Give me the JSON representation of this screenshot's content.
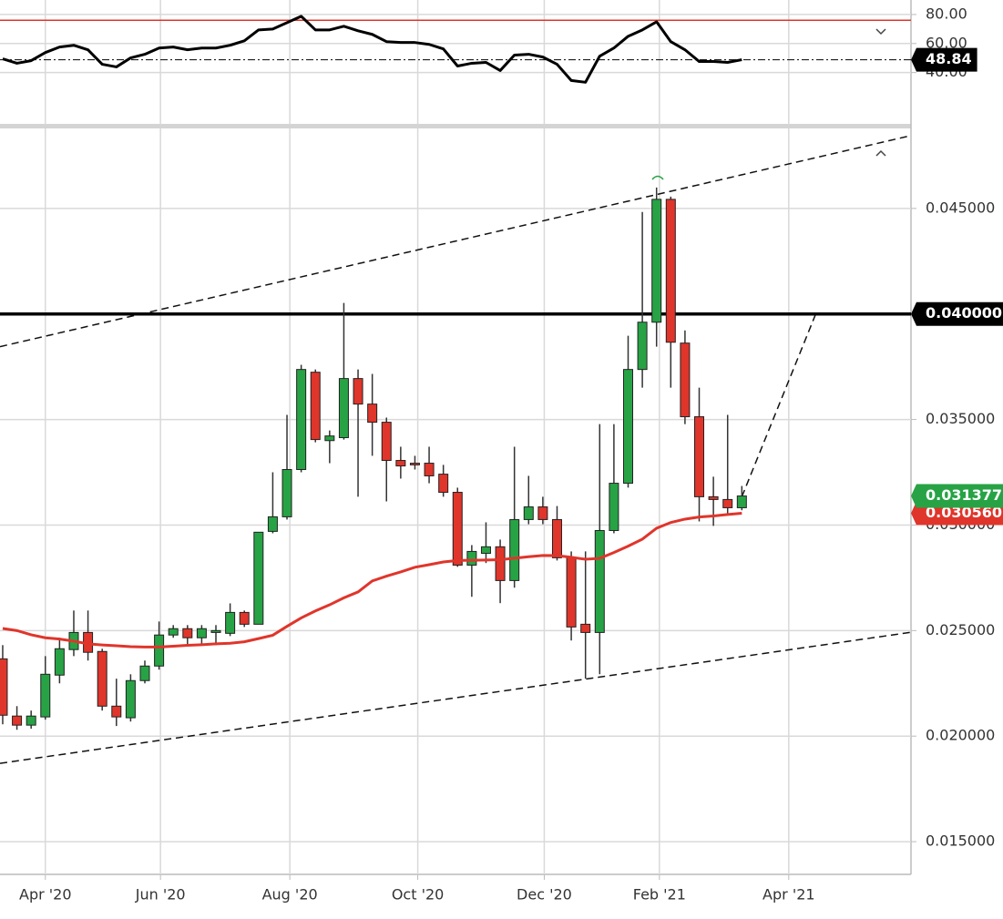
{
  "chart_data": [
    {
      "type": "candlestick",
      "x": [
        0,
        1,
        2,
        3,
        4,
        5,
        6,
        7,
        8,
        9,
        10,
        11,
        12,
        13,
        14,
        15,
        16,
        17,
        18,
        19,
        20,
        21,
        22,
        23,
        24,
        25,
        26,
        27,
        28,
        29,
        30,
        31,
        32,
        33,
        34,
        35,
        36,
        37,
        38,
        39,
        40,
        41,
        42,
        43,
        44,
        45,
        46,
        47,
        48,
        49,
        50,
        51,
        52
      ],
      "open": [
        0.02366,
        0.02095,
        0.02052,
        0.02091,
        0.02289,
        0.0241,
        0.02491,
        0.02401,
        0.02142,
        0.02087,
        0.02263,
        0.02332,
        0.02479,
        0.02509,
        0.02466,
        0.02491,
        0.02487,
        0.02586,
        0.0253,
        0.0297,
        0.03039,
        0.03263,
        0.03724,
        0.034,
        0.03414,
        0.03694,
        0.03573,
        0.03487,
        0.03306,
        0.03293,
        0.03293,
        0.03241,
        0.03155,
        0.0281,
        0.02866,
        0.02897,
        0.02737,
        0.03026,
        0.03086,
        0.03026,
        0.02845,
        0.0253,
        0.02491,
        0.02974,
        0.03198,
        0.03737,
        0.03961,
        0.04543,
        0.03862,
        0.03513,
        0.03134,
        0.03121,
        0.03082
      ],
      "high": [
        0.02431,
        0.02142,
        0.02121,
        0.02379,
        0.02466,
        0.02595,
        0.02595,
        0.02414,
        0.02272,
        0.02293,
        0.02358,
        0.02543,
        0.02526,
        0.02526,
        0.02526,
        0.02526,
        0.02629,
        0.02595,
        0.02966,
        0.0325,
        0.03522,
        0.03759,
        0.03737,
        0.03448,
        0.04052,
        0.03737,
        0.03716,
        0.03509,
        0.03371,
        0.03328,
        0.03371,
        0.03285,
        0.03177,
        0.02905,
        0.03013,
        0.02931,
        0.03371,
        0.03233,
        0.03134,
        0.0309,
        0.02875,
        0.02875,
        0.03478,
        0.03478,
        0.03897,
        0.04483,
        0.04599,
        0.04556,
        0.03922,
        0.03651,
        0.03229,
        0.03522,
        0.03185
      ],
      "low": [
        0.02056,
        0.0203,
        0.02035,
        0.02078,
        0.0225,
        0.02379,
        0.02358,
        0.02121,
        0.02048,
        0.02069,
        0.0225,
        0.02315,
        0.02466,
        0.02431,
        0.02431,
        0.02431,
        0.02474,
        0.02517,
        0.0253,
        0.02961,
        0.03026,
        0.0325,
        0.03392,
        0.03293,
        0.03405,
        0.03134,
        0.03328,
        0.03112,
        0.0322,
        0.03263,
        0.03198,
        0.03134,
        0.02802,
        0.0266,
        0.0282,
        0.0263,
        0.02703,
        0.03004,
        0.03004,
        0.02832,
        0.02453,
        0.02272,
        0.02293,
        0.02961,
        0.03177,
        0.03651,
        0.03845,
        0.03651,
        0.03478,
        0.03017,
        0.02996,
        0.03047,
        0.0307
      ],
      "close": [
        0.02099,
        0.02052,
        0.02095,
        0.02293,
        0.02414,
        0.02491,
        0.02397,
        0.02142,
        0.02091,
        0.02263,
        0.02332,
        0.02479,
        0.02509,
        0.02466,
        0.02509,
        0.025,
        0.02586,
        0.0253,
        0.02966,
        0.03039,
        0.03263,
        0.03737,
        0.03405,
        0.03422,
        0.03694,
        0.03573,
        0.03487,
        0.03306,
        0.0328,
        0.03285,
        0.03233,
        0.03155,
        0.0281,
        0.02875,
        0.02897,
        0.02737,
        0.03026,
        0.03086,
        0.03026,
        0.02845,
        0.02517,
        0.02491,
        0.02974,
        0.03198,
        0.03737,
        0.03961,
        0.04543,
        0.03866,
        0.03513,
        0.03134,
        0.03121,
        0.03082,
        0.031377
      ],
      "up_color": "#27a345",
      "down_color": "#e0352b",
      "overlays": [
        {
          "color": "#e0352b",
          "values": [
            0.0251,
            0.025,
            0.0248,
            0.02466,
            0.0246,
            0.0245,
            0.02437,
            0.02432,
            0.02428,
            0.02424,
            0.02422,
            0.02422,
            0.02426,
            0.0243,
            0.02433,
            0.02437,
            0.0244,
            0.02447,
            0.02462,
            0.02478,
            0.0252,
            0.0256,
            0.02593,
            0.02622,
            0.02655,
            0.02683,
            0.02735,
            0.02758,
            0.02778,
            0.028,
            0.02812,
            0.02825,
            0.02832,
            0.02833,
            0.02834,
            0.02836,
            0.02843,
            0.0285,
            0.02856,
            0.02855,
            0.02847,
            0.02838,
            0.02842,
            0.0287,
            0.029,
            0.02933,
            0.02985,
            0.03012,
            0.03028,
            0.03038,
            0.03043,
            0.0305,
            0.03056
          ]
        }
      ],
      "trendlines": [
        {
          "x": [
            -0.19,
            63.9
          ],
          "values": [
            0.03845,
            0.04845
          ]
        },
        {
          "x": [
            -0.19,
            63.9
          ],
          "values": [
            0.01871,
            0.02492
          ]
        },
        {
          "x": [
            52,
            57.2
          ],
          "values": [
            0.03134,
            0.04
          ]
        }
      ],
      "markers": [
        {
          "value": 0.04,
          "label": "0.040000",
          "color": "#000000",
          "line": true
        },
        {
          "value": 0.03056,
          "label": "0.030560",
          "color": "#e0352b"
        },
        {
          "value": 0.031377,
          "label": "0.031377",
          "color": "#27a345"
        }
      ],
      "xlim": [
        -0.19,
        63.9
      ],
      "xticks": [
        {
          "value": 3.0,
          "label": "Apr '20"
        },
        {
          "value": 11.1,
          "label": "Jun '20"
        },
        {
          "value": 20.2,
          "label": "Aug '20"
        },
        {
          "value": 29.2,
          "label": "Oct '20"
        },
        {
          "value": 38.1,
          "label": "Dec '20"
        },
        {
          "value": 46.2,
          "label": "Feb '21"
        },
        {
          "value": 55.3,
          "label": "Apr '21"
        }
      ],
      "ylim": [
        0.01345,
        0.04879
      ],
      "yticks": [
        {
          "value": 0.015,
          "label": "0.015000"
        },
        {
          "value": 0.02,
          "label": "0.020000"
        },
        {
          "value": 0.025,
          "label": "0.025000"
        },
        {
          "value": 0.03,
          "label": "0.030000"
        },
        {
          "value": 0.035,
          "label": "0.035000"
        },
        {
          "value": 0.045,
          "label": "0.045000"
        }
      ],
      "grid": true
    },
    {
      "type": "line",
      "x": [
        0,
        1,
        2,
        3,
        4,
        5,
        6,
        7,
        8,
        9,
        10,
        11,
        12,
        13,
        14,
        15,
        16,
        17,
        18,
        19,
        20,
        21,
        22,
        23,
        24,
        25,
        26,
        27,
        28,
        29,
        30,
        31,
        32,
        33,
        34,
        35,
        36,
        37,
        38,
        39,
        40,
        41,
        42,
        43,
        44,
        45,
        46,
        47,
        48,
        49,
        50,
        51,
        52
      ],
      "values": [
        49.5,
        46.4,
        48.2,
        53.8,
        57.6,
        58.8,
        55.7,
        45.7,
        43.9,
        50.1,
        52.6,
        56.9,
        57.6,
        55.7,
        56.9,
        56.9,
        58.8,
        61.9,
        69.4,
        70.0,
        74.4,
        78.8,
        69.4,
        69.4,
        71.9,
        68.8,
        66.3,
        61.3,
        60.7,
        60.7,
        59.4,
        56.3,
        44.5,
        46.4,
        47.0,
        41.4,
        52.0,
        52.6,
        50.7,
        45.7,
        34.5,
        33.3,
        51.3,
        56.9,
        65.0,
        69.4,
        75.0,
        61.3,
        55.7,
        47.6,
        47.6,
        47.0,
        48.84
      ],
      "color": "#000000",
      "hlines": [
        {
          "value": 76,
          "color": "#e0352b"
        }
      ],
      "markers": [
        {
          "value": 48.84,
          "label": "48.84",
          "color": "#000000",
          "line": true
        }
      ],
      "xlim": [
        -0.19,
        63.9
      ],
      "ylim": [
        4,
        90
      ],
      "yticks": [
        {
          "value": 40,
          "label": "40.00"
        },
        {
          "value": 60,
          "label": "60.00"
        },
        {
          "value": 80,
          "label": "80.00"
        }
      ],
      "grid": true
    }
  ]
}
